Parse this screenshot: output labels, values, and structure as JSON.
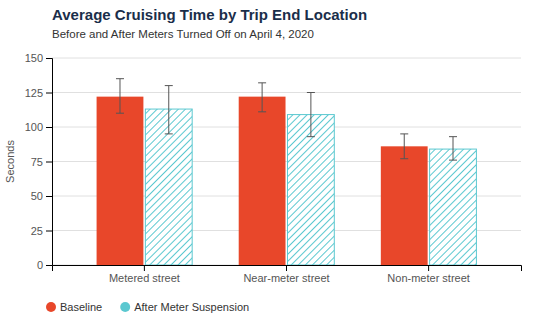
{
  "chart_data": {
    "type": "bar",
    "title": "Average Cruising Time by Trip End Location",
    "subtitle": "Before and After Meters Turned Off on April 4, 2020",
    "ylabel": "Seconds",
    "categories": [
      "Metered street",
      "Near-meter street",
      "Non-meter street"
    ],
    "series": [
      {
        "name": "Baseline",
        "color": "#E8472A",
        "values": [
          122,
          122,
          86
        ],
        "error_low": [
          12,
          11,
          9
        ],
        "error_high": [
          13,
          10,
          9
        ]
      },
      {
        "name": "After Meter Suspension",
        "color": "#5BC8D0",
        "values": [
          113,
          109,
          84
        ],
        "error_low": [
          18,
          16,
          8
        ],
        "error_high": [
          17,
          16,
          9
        ]
      }
    ],
    "ylim": [
      0,
      150
    ],
    "yticks": [
      0,
      25,
      50,
      75,
      100,
      125,
      150
    ],
    "grid": true,
    "legend": "bottom"
  }
}
